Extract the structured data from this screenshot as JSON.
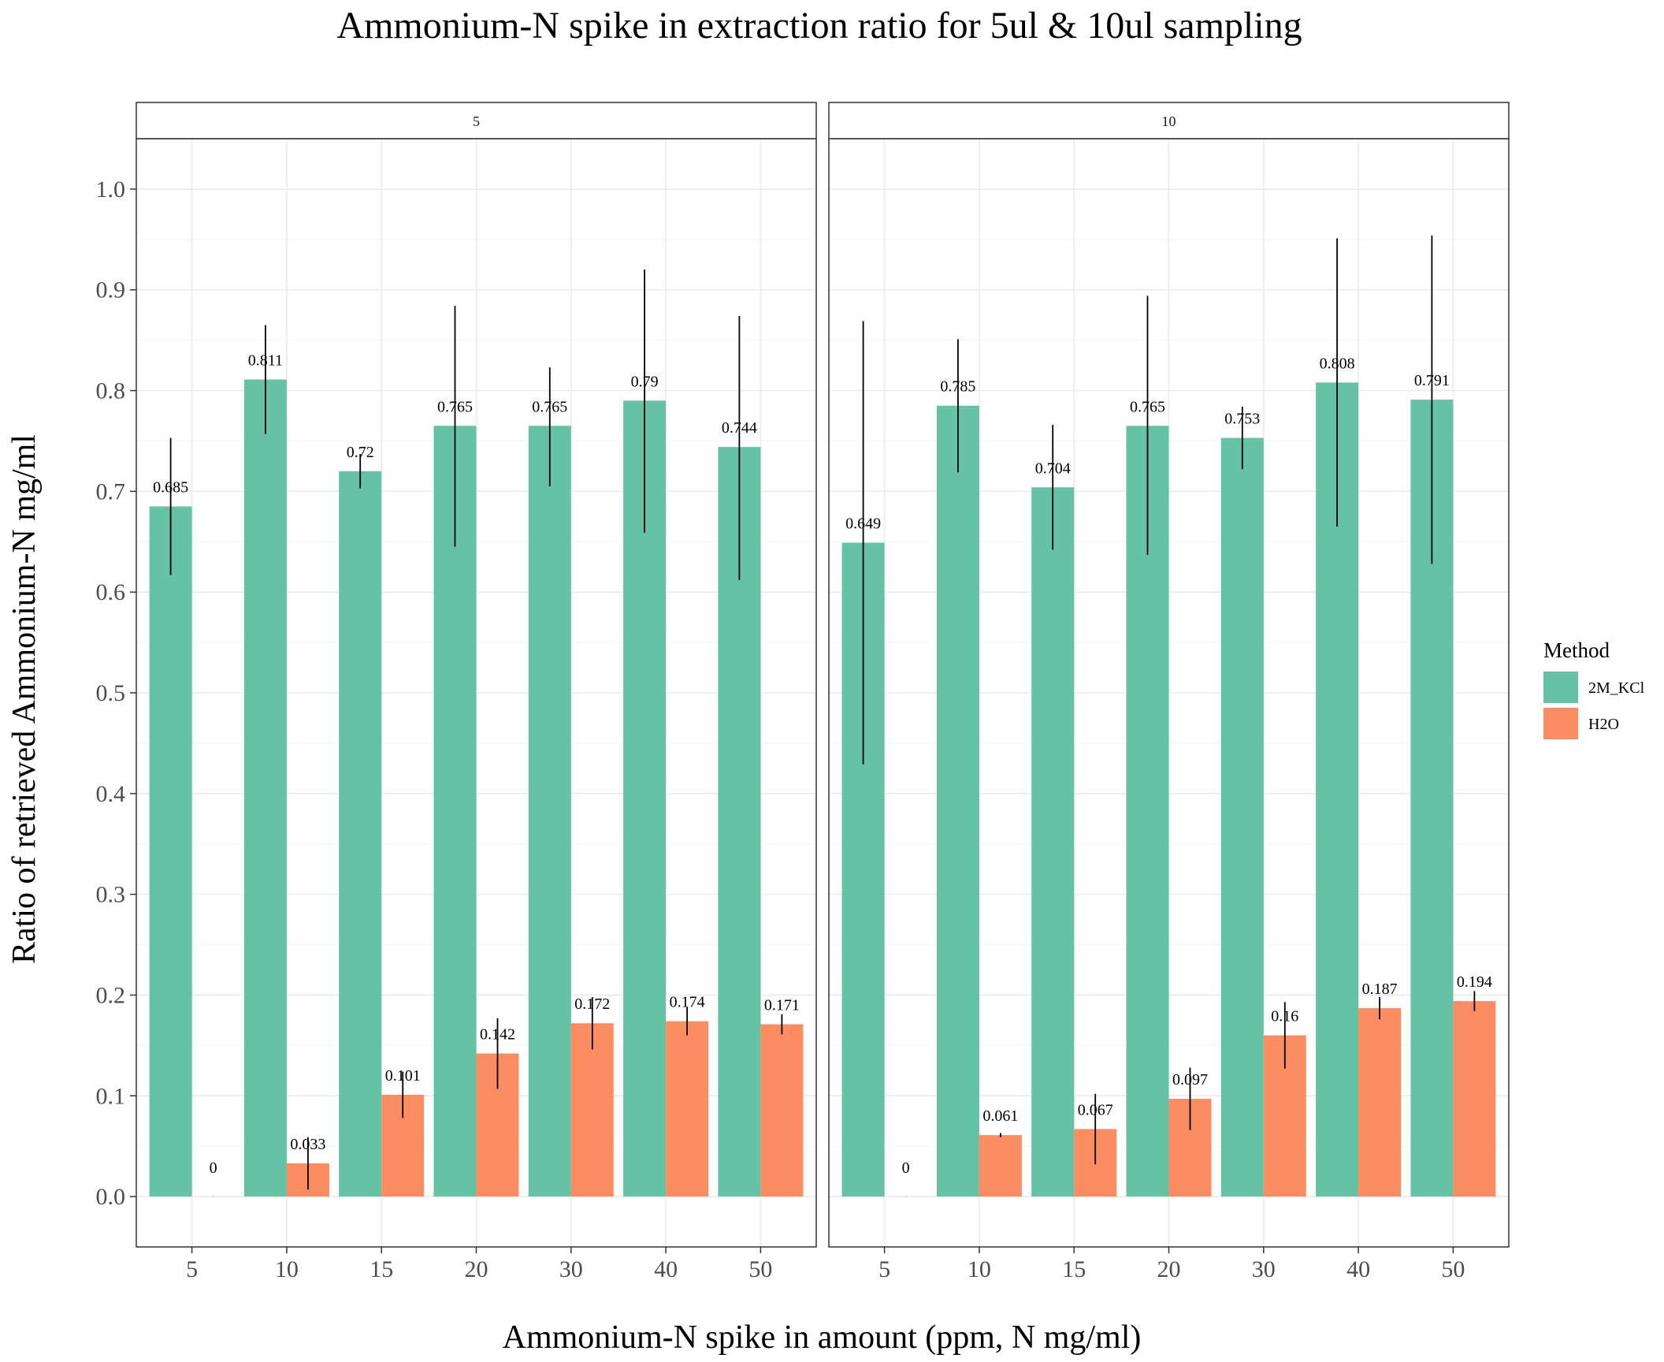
{
  "chart_data": {
    "type": "bar",
    "title": "Ammonium-N spike in extraction ratio for 5ul & 10ul sampling",
    "xlabel": "Ammonium-N spike in amount (ppm, N mg/ml)",
    "ylabel": "Ratio of retrieved Ammonium-N mg/ml",
    "ylim": [
      -0.05,
      1.05
    ],
    "yticks": [
      0.0,
      0.1,
      0.2,
      0.3,
      0.4,
      0.5,
      0.6,
      0.7,
      0.8,
      0.9,
      1.0
    ],
    "ytick_labels": [
      "0.0",
      "0.1",
      "0.2",
      "0.3",
      "0.4",
      "0.5",
      "0.6",
      "0.7",
      "0.8",
      "0.9",
      "1.0"
    ],
    "grid": true,
    "legend": {
      "title": "Method",
      "position": "right",
      "entries": [
        {
          "name": "2M_KCl",
          "color": "#66c2a5"
        },
        {
          "name": "H2O",
          "color": "#fc8d62"
        }
      ]
    },
    "categories": [
      "5",
      "10",
      "15",
      "20",
      "30",
      "40",
      "50"
    ],
    "panels": [
      {
        "strip_label": "5",
        "series": [
          {
            "name": "2M_KCl",
            "color": "#66c2a5",
            "values": [
              0.685,
              0.811,
              0.72,
              0.765,
              0.765,
              0.79,
              0.744
            ],
            "labels": [
              "0.685",
              "0.811",
              "0.72",
              "0.765",
              "0.765",
              "0.79",
              "0.744"
            ],
            "error_low": [
              0.617,
              0.757,
              0.703,
              0.645,
              0.705,
              0.659,
              0.612
            ],
            "error_high": [
              0.753,
              0.865,
              0.737,
              0.884,
              0.823,
              0.92,
              0.874
            ]
          },
          {
            "name": "H2O",
            "color": "#fc8d62",
            "values": [
              0,
              0.033,
              0.101,
              0.142,
              0.172,
              0.174,
              0.171
            ],
            "labels": [
              "0",
              "0.033",
              "0.101",
              "0.142",
              "0.172",
              "0.174",
              "0.171"
            ],
            "error_low": [
              0,
              0.007,
              0.078,
              0.107,
              0.146,
              0.16,
              0.161
            ],
            "error_high": [
              0,
              0.059,
              0.124,
              0.177,
              0.198,
              0.188,
              0.181
            ]
          }
        ]
      },
      {
        "strip_label": "10",
        "series": [
          {
            "name": "2M_KCl",
            "color": "#66c2a5",
            "values": [
              0.649,
              0.785,
              0.704,
              0.765,
              0.753,
              0.808,
              0.791
            ],
            "labels": [
              "0.649",
              "0.785",
              "0.704",
              "0.765",
              "0.753",
              "0.808",
              "0.791"
            ],
            "error_low": [
              0.429,
              0.719,
              0.642,
              0.637,
              0.722,
              0.665,
              0.628
            ],
            "error_high": [
              0.869,
              0.851,
              0.766,
              0.894,
              0.784,
              0.951,
              0.954
            ]
          },
          {
            "name": "H2O",
            "color": "#fc8d62",
            "values": [
              0,
              0.061,
              0.067,
              0.097,
              0.16,
              0.187,
              0.194
            ],
            "labels": [
              "0",
              "0.061",
              "0.067",
              "0.097",
              "0.16",
              "0.187",
              "0.194"
            ],
            "error_low": [
              0,
              0.059,
              0.032,
              0.066,
              0.127,
              0.176,
              0.184
            ],
            "error_high": [
              0,
              0.063,
              0.102,
              0.128,
              0.193,
              0.198,
              0.204
            ]
          }
        ]
      }
    ]
  }
}
